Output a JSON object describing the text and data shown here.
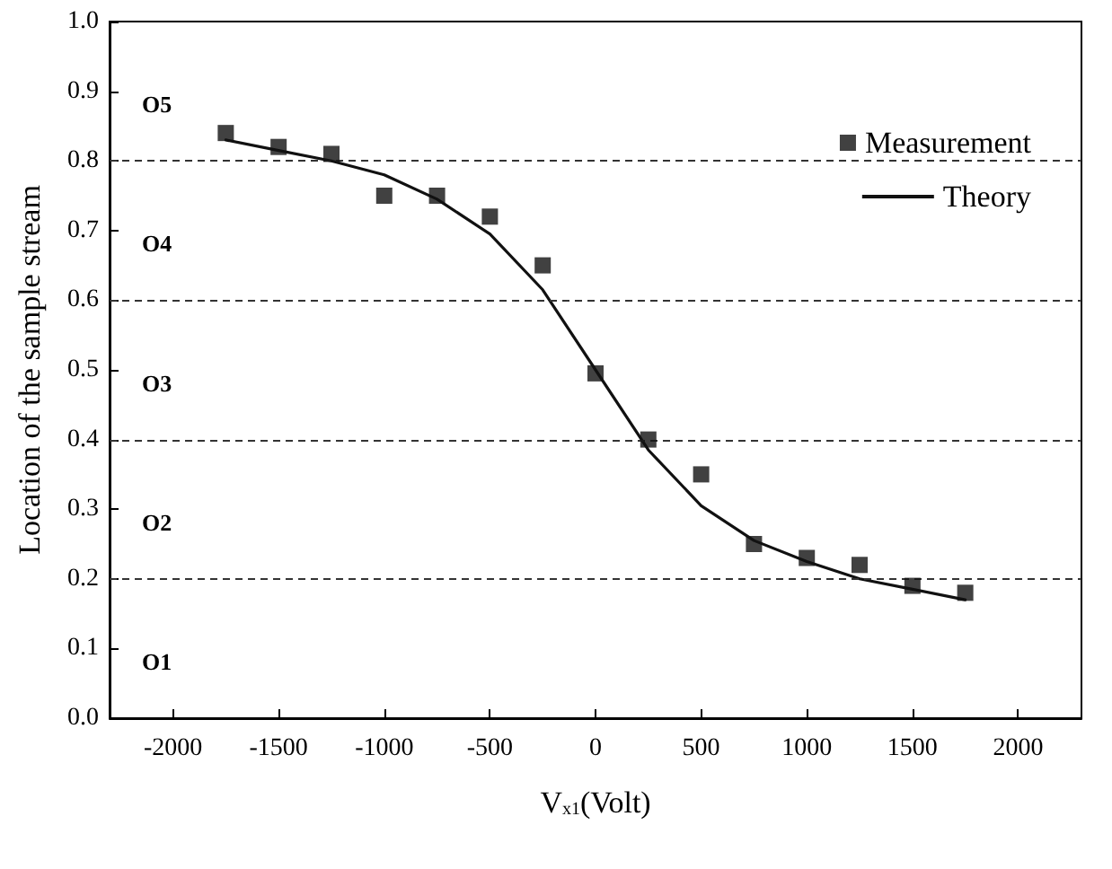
{
  "chart_data": {
    "type": "scatter",
    "xlabel": "V$_{x1}$(Volt)",
    "ylabel": "Location of the sample stream",
    "x": [
      -1750,
      -1500,
      -1250,
      -1000,
      -750,
      -500,
      -250,
      0,
      250,
      500,
      750,
      1000,
      1250,
      1500,
      1750
    ],
    "series": [
      {
        "name": "Measurement",
        "color": "#111111",
        "marker": "square",
        "values": [
          0.84,
          0.82,
          0.81,
          0.75,
          0.75,
          0.72,
          0.65,
          0.495,
          0.4,
          0.35,
          0.25,
          0.23,
          0.22,
          0.19,
          0.18
        ]
      },
      {
        "name": "Theory",
        "type": "line",
        "color": "#111111",
        "marker": "none",
        "line_style": "solid",
        "values": [
          0.83,
          0.815,
          0.8,
          0.78,
          0.745,
          0.695,
          0.615,
          0.5,
          0.385,
          0.305,
          0.255,
          0.225,
          0.2,
          0.185,
          0.17
        ]
      }
    ],
    "xlim": [
      -2300,
      2300
    ],
    "xticks": [
      -2000,
      -1500,
      -1000,
      -500,
      0,
      500,
      1000,
      1500,
      2000
    ],
    "ylim": [
      0,
      1
    ],
    "yticks": [
      {
        "value": 0,
        "label": "0.0"
      },
      0.1,
      0.2,
      0.3,
      0.4,
      0.5,
      0.6,
      0.7,
      0.8,
      0.9,
      {
        "value": 1,
        "label": "1.0"
      }
    ],
    "ref_lines": [
      {
        "axis": "y",
        "value": 0.2,
        "line_style": "dashed"
      },
      {
        "axis": "y",
        "value": 0.4,
        "line_style": "dashed"
      },
      {
        "axis": "y",
        "value": 0.6,
        "line_style": "dashed"
      },
      {
        "axis": "y",
        "value": 0.8,
        "line_style": "dashed"
      }
    ],
    "annotations": [
      "O5",
      "O4",
      "O3",
      "O2",
      "O1"
    ],
    "legend": "top right",
    "grid": false
  }
}
